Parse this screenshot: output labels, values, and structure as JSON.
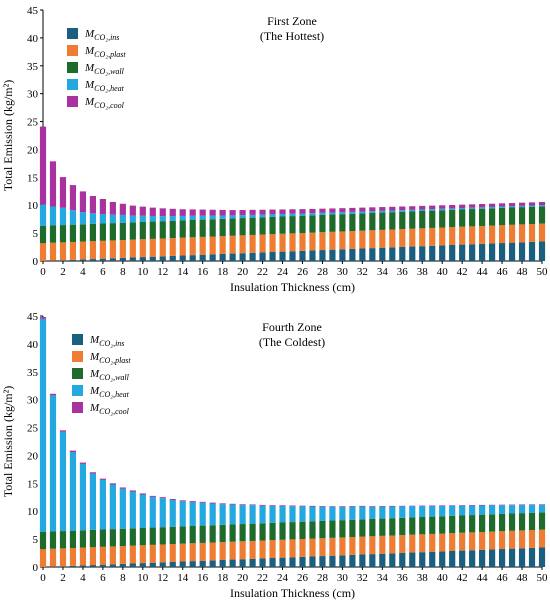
{
  "colors": {
    "ins": "#1b5f80",
    "plast": "#ee7d33",
    "wall": "#1e6b2b",
    "heat": "#24a8e0",
    "cool": "#a8339e"
  },
  "chart_data": [
    {
      "type": "bar",
      "stacked": true,
      "title": "First Zone",
      "subtitle": "(The Hottest)",
      "xlabel": "Insulation Thickness (cm)",
      "ylabel": "Total Emission (kg/m²)",
      "ylim": [
        0,
        45
      ],
      "yticks": [
        0,
        5,
        10,
        15,
        20,
        25,
        30,
        35,
        40,
        45
      ],
      "xlim": [
        0,
        50
      ],
      "xticks": [
        0,
        2,
        4,
        6,
        8,
        10,
        12,
        14,
        16,
        18,
        20,
        22,
        24,
        26,
        28,
        30,
        32,
        34,
        36,
        38,
        40,
        42,
        44,
        46,
        48,
        50
      ],
      "legend_position": "top-left",
      "x": [
        0,
        1,
        2,
        3,
        4,
        5,
        6,
        7,
        8,
        9,
        10,
        11,
        12,
        13,
        14,
        15,
        16,
        17,
        18,
        19,
        20,
        21,
        22,
        23,
        24,
        25,
        26,
        27,
        28,
        29,
        30,
        31,
        32,
        33,
        34,
        35,
        36,
        37,
        38,
        39,
        40,
        41,
        42,
        43,
        44,
        45,
        46,
        47,
        48,
        49,
        50
      ],
      "series": [
        {
          "name": "M",
          "subscript": "CO₂,ins",
          "key": "ins",
          "values": [
            0,
            0.07,
            0.14,
            0.21,
            0.28,
            0.35,
            0.42,
            0.49,
            0.56,
            0.63,
            0.7,
            0.77,
            0.84,
            0.91,
            0.98,
            1.05,
            1.12,
            1.19,
            1.26,
            1.33,
            1.4,
            1.47,
            1.54,
            1.61,
            1.68,
            1.75,
            1.82,
            1.89,
            1.96,
            2.03,
            2.1,
            2.17,
            2.24,
            2.31,
            2.38,
            2.45,
            2.52,
            2.59,
            2.66,
            2.73,
            2.8,
            2.87,
            2.94,
            3.01,
            3.08,
            3.15,
            3.22,
            3.29,
            3.36,
            3.43,
            3.5
          ]
        },
        {
          "name": "M",
          "subscript": "CO₂,plast",
          "key": "plast",
          "values": [
            3.2,
            3.2,
            3.2,
            3.2,
            3.2,
            3.2,
            3.2,
            3.2,
            3.2,
            3.2,
            3.2,
            3.2,
            3.2,
            3.2,
            3.2,
            3.2,
            3.2,
            3.2,
            3.2,
            3.2,
            3.2,
            3.2,
            3.2,
            3.2,
            3.2,
            3.2,
            3.2,
            3.2,
            3.2,
            3.2,
            3.2,
            3.2,
            3.2,
            3.2,
            3.2,
            3.2,
            3.2,
            3.2,
            3.2,
            3.2,
            3.2,
            3.2,
            3.2,
            3.2,
            3.2,
            3.2,
            3.2,
            3.2,
            3.2,
            3.2,
            3.2
          ]
        },
        {
          "name": "M",
          "subscript": "CO₂,wall",
          "key": "wall",
          "values": [
            3.1,
            3.1,
            3.1,
            3.1,
            3.1,
            3.1,
            3.1,
            3.1,
            3.1,
            3.1,
            3.1,
            3.1,
            3.1,
            3.1,
            3.1,
            3.1,
            3.1,
            3.1,
            3.1,
            3.1,
            3.1,
            3.1,
            3.1,
            3.1,
            3.1,
            3.1,
            3.1,
            3.1,
            3.1,
            3.1,
            3.1,
            3.1,
            3.1,
            3.1,
            3.1,
            3.1,
            3.1,
            3.1,
            3.1,
            3.1,
            3.1,
            3.1,
            3.1,
            3.1,
            3.1,
            3.1,
            3.1,
            3.1,
            3.1,
            3.1,
            3.1
          ]
        },
        {
          "name": "M",
          "subscript": "CO₂,heat",
          "key": "heat",
          "values": [
            3.8,
            3.4,
            3.1,
            2.6,
            2.2,
            1.9,
            1.7,
            1.5,
            1.4,
            1.2,
            1.1,
            1.0,
            0.9,
            0.85,
            0.8,
            0.75,
            0.7,
            0.65,
            0.6,
            0.55,
            0.52,
            0.5,
            0.48,
            0.46,
            0.44,
            0.42,
            0.4,
            0.38,
            0.37,
            0.36,
            0.35,
            0.34,
            0.33,
            0.32,
            0.31,
            0.3,
            0.29,
            0.28,
            0.28,
            0.27,
            0.27,
            0.26,
            0.26,
            0.25,
            0.25,
            0.24,
            0.24,
            0.23,
            0.23,
            0.22,
            0.22
          ]
        },
        {
          "name": "M",
          "subscript": "CO₂,cool",
          "key": "cool",
          "values": [
            14.0,
            8.1,
            5.5,
            4.5,
            3.7,
            3.1,
            2.7,
            2.3,
            2.0,
            1.8,
            1.65,
            1.5,
            1.4,
            1.3,
            1.2,
            1.15,
            1.1,
            1.05,
            1.0,
            0.95,
            0.92,
            0.9,
            0.87,
            0.85,
            0.82,
            0.8,
            0.78,
            0.76,
            0.75,
            0.73,
            0.72,
            0.71,
            0.7,
            0.69,
            0.68,
            0.67,
            0.66,
            0.65,
            0.64,
            0.63,
            0.62,
            0.61,
            0.6,
            0.6,
            0.59,
            0.58,
            0.58,
            0.57,
            0.57,
            0.56,
            0.56
          ]
        }
      ]
    },
    {
      "type": "bar",
      "stacked": true,
      "title": "Fourth Zone",
      "subtitle": "(The Coldest)",
      "xlabel": "Insulation Thickness (cm)",
      "ylabel": "Total Emission (kg/m²)",
      "ylim": [
        0,
        45
      ],
      "yticks": [
        0,
        5,
        10,
        15,
        20,
        25,
        30,
        35,
        40,
        45
      ],
      "xlim": [
        0,
        50
      ],
      "xticks": [
        0,
        2,
        4,
        6,
        8,
        10,
        12,
        14,
        16,
        18,
        20,
        22,
        24,
        26,
        28,
        30,
        32,
        34,
        36,
        38,
        40,
        42,
        44,
        46,
        48,
        50
      ],
      "legend_position": "top-left",
      "x": [
        0,
        1,
        2,
        3,
        4,
        5,
        6,
        7,
        8,
        9,
        10,
        11,
        12,
        13,
        14,
        15,
        16,
        17,
        18,
        19,
        20,
        21,
        22,
        23,
        24,
        25,
        26,
        27,
        28,
        29,
        30,
        31,
        32,
        33,
        34,
        35,
        36,
        37,
        38,
        39,
        40,
        41,
        42,
        43,
        44,
        45,
        46,
        47,
        48,
        49,
        50
      ],
      "series": [
        {
          "name": "M",
          "subscript": "CO₂,ins",
          "key": "ins",
          "values": [
            0,
            0.07,
            0.14,
            0.21,
            0.28,
            0.35,
            0.42,
            0.49,
            0.56,
            0.63,
            0.7,
            0.77,
            0.84,
            0.91,
            0.98,
            1.05,
            1.12,
            1.19,
            1.26,
            1.33,
            1.4,
            1.47,
            1.54,
            1.61,
            1.68,
            1.75,
            1.82,
            1.89,
            1.96,
            2.03,
            2.1,
            2.17,
            2.24,
            2.31,
            2.38,
            2.45,
            2.52,
            2.59,
            2.66,
            2.73,
            2.8,
            2.87,
            2.94,
            3.01,
            3.08,
            3.15,
            3.22,
            3.29,
            3.36,
            3.43,
            3.5
          ]
        },
        {
          "name": "M",
          "subscript": "CO₂,plast",
          "key": "plast",
          "values": [
            3.2,
            3.2,
            3.2,
            3.2,
            3.2,
            3.2,
            3.2,
            3.2,
            3.2,
            3.2,
            3.2,
            3.2,
            3.2,
            3.2,
            3.2,
            3.2,
            3.2,
            3.2,
            3.2,
            3.2,
            3.2,
            3.2,
            3.2,
            3.2,
            3.2,
            3.2,
            3.2,
            3.2,
            3.2,
            3.2,
            3.2,
            3.2,
            3.2,
            3.2,
            3.2,
            3.2,
            3.2,
            3.2,
            3.2,
            3.2,
            3.2,
            3.2,
            3.2,
            3.2,
            3.2,
            3.2,
            3.2,
            3.2,
            3.2,
            3.2,
            3.2
          ]
        },
        {
          "name": "M",
          "subscript": "CO₂,wall",
          "key": "wall",
          "values": [
            3.1,
            3.1,
            3.1,
            3.1,
            3.1,
            3.1,
            3.1,
            3.1,
            3.1,
            3.1,
            3.1,
            3.1,
            3.1,
            3.1,
            3.1,
            3.1,
            3.1,
            3.1,
            3.1,
            3.1,
            3.1,
            3.1,
            3.1,
            3.1,
            3.1,
            3.1,
            3.1,
            3.1,
            3.1,
            3.1,
            3.1,
            3.1,
            3.1,
            3.1,
            3.1,
            3.1,
            3.1,
            3.1,
            3.1,
            3.1,
            3.1,
            3.1,
            3.1,
            3.1,
            3.1,
            3.1,
            3.1,
            3.1,
            3.1,
            3.1,
            3.1
          ]
        },
        {
          "name": "M",
          "subscript": "CO₂,heat",
          "key": "heat",
          "values": [
            38.2,
            24.4,
            17.8,
            14.1,
            11.9,
            10.1,
            8.9,
            8.0,
            7.2,
            6.6,
            6.0,
            5.5,
            5.2,
            4.8,
            4.5,
            4.3,
            4.1,
            3.9,
            3.7,
            3.55,
            3.4,
            3.3,
            3.15,
            3.05,
            2.95,
            2.85,
            2.75,
            2.65,
            2.55,
            2.45,
            2.4,
            2.35,
            2.3,
            2.2,
            2.15,
            2.1,
            2.05,
            2.0,
            1.95,
            1.9,
            1.85,
            1.8,
            1.75,
            1.7,
            1.65,
            1.6,
            1.55,
            1.5,
            1.45,
            1.4,
            1.35
          ]
        },
        {
          "name": "M",
          "subscript": "CO₂,cool",
          "key": "cool",
          "values": [
            0.3,
            0.28,
            0.26,
            0.25,
            0.24,
            0.23,
            0.22,
            0.21,
            0.2,
            0.2,
            0.19,
            0.18,
            0.18,
            0.17,
            0.17,
            0.16,
            0.16,
            0.15,
            0.15,
            0.15,
            0.14,
            0.14,
            0.14,
            0.13,
            0.13,
            0.13,
            0.12,
            0.12,
            0.12,
            0.12,
            0.11,
            0.11,
            0.11,
            0.11,
            0.1,
            0.1,
            0.1,
            0.1,
            0.1,
            0.1,
            0.1,
            0.1,
            0.1,
            0.1,
            0.1,
            0.1,
            0.1,
            0.1,
            0.1,
            0.1,
            0.1
          ]
        }
      ]
    }
  ]
}
